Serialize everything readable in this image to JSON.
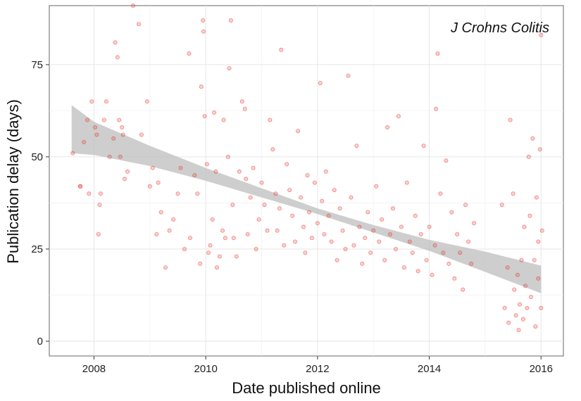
{
  "chart_data": {
    "type": "scatter",
    "title": "",
    "annotation": "J Crohns Colitis",
    "xlabel": "Date published online",
    "ylabel": "Publication delay (days)",
    "xlim": [
      2007.2,
      2016.4
    ],
    "ylim": [
      -4,
      91
    ],
    "x_ticks": [
      2008,
      2010,
      2012,
      2014,
      2016
    ],
    "x_tick_labels": [
      "2008",
      "2010",
      "2012",
      "2014",
      "2016"
    ],
    "y_ticks": [
      0,
      25,
      50,
      75
    ],
    "y_tick_labels": [
      "0",
      "25",
      "50",
      "75"
    ],
    "grid": true,
    "point_color": "#e8332a",
    "ribbon_color": "#bdbdbd",
    "trend": {
      "x": [
        2007.6,
        2008,
        2009,
        2010,
        2011,
        2012,
        2013,
        2014,
        2015,
        2016
      ],
      "lower": [
        51,
        50.5,
        47.5,
        43.5,
        39,
        34.5,
        29.5,
        24.5,
        18.8,
        13
      ],
      "upper": [
        64,
        59.5,
        53,
        47,
        41.5,
        36,
        31.5,
        27.5,
        24.3,
        20.5
      ]
    },
    "points": [
      [
        2007.62,
        51
      ],
      [
        2007.75,
        42
      ],
      [
        2007.76,
        42
      ],
      [
        2007.82,
        54
      ],
      [
        2007.88,
        60
      ],
      [
        2007.91,
        40
      ],
      [
        2007.96,
        65
      ],
      [
        2008.02,
        58
      ],
      [
        2008.05,
        56
      ],
      [
        2008.08,
        29
      ],
      [
        2008.1,
        37
      ],
      [
        2008.12,
        40
      ],
      [
        2008.18,
        60
      ],
      [
        2008.22,
        65
      ],
      [
        2008.28,
        50
      ],
      [
        2008.35,
        55
      ],
      [
        2008.38,
        81
      ],
      [
        2008.42,
        77
      ],
      [
        2008.45,
        60
      ],
      [
        2008.47,
        50
      ],
      [
        2008.5,
        58
      ],
      [
        2008.52,
        56
      ],
      [
        2008.55,
        44
      ],
      [
        2008.6,
        46
      ],
      [
        2008.7,
        91
      ],
      [
        2008.8,
        86
      ],
      [
        2008.85,
        56
      ],
      [
        2008.95,
        65
      ],
      [
        2009.0,
        42
      ],
      [
        2009.05,
        47
      ],
      [
        2009.12,
        29
      ],
      [
        2009.15,
        43
      ],
      [
        2009.2,
        35
      ],
      [
        2009.28,
        20
      ],
      [
        2009.35,
        30
      ],
      [
        2009.42,
        33
      ],
      [
        2009.5,
        40
      ],
      [
        2009.55,
        47
      ],
      [
        2009.62,
        25
      ],
      [
        2009.7,
        78
      ],
      [
        2009.72,
        28
      ],
      [
        2009.8,
        45
      ],
      [
        2009.85,
        40
      ],
      [
        2009.9,
        21
      ],
      [
        2009.92,
        69
      ],
      [
        2009.95,
        87
      ],
      [
        2009.96,
        84
      ],
      [
        2009.98,
        61
      ],
      [
        2010.02,
        48
      ],
      [
        2010.05,
        24
      ],
      [
        2010.08,
        26
      ],
      [
        2010.12,
        33
      ],
      [
        2010.15,
        62
      ],
      [
        2010.18,
        46
      ],
      [
        2010.2,
        20
      ],
      [
        2010.25,
        23
      ],
      [
        2010.3,
        30
      ],
      [
        2010.32,
        60
      ],
      [
        2010.35,
        28
      ],
      [
        2010.4,
        50
      ],
      [
        2010.42,
        74
      ],
      [
        2010.45,
        87
      ],
      [
        2010.48,
        37
      ],
      [
        2010.5,
        28
      ],
      [
        2010.55,
        23
      ],
      [
        2010.6,
        46
      ],
      [
        2010.65,
        65
      ],
      [
        2010.7,
        63
      ],
      [
        2010.72,
        44
      ],
      [
        2010.75,
        29
      ],
      [
        2010.8,
        39
      ],
      [
        2010.85,
        47
      ],
      [
        2010.9,
        25
      ],
      [
        2010.95,
        33
      ],
      [
        2011.0,
        43
      ],
      [
        2011.05,
        37
      ],
      [
        2011.1,
        30
      ],
      [
        2011.15,
        60
      ],
      [
        2011.2,
        52
      ],
      [
        2011.25,
        40
      ],
      [
        2011.28,
        30
      ],
      [
        2011.32,
        36
      ],
      [
        2011.35,
        79
      ],
      [
        2011.4,
        26
      ],
      [
        2011.45,
        48
      ],
      [
        2011.5,
        41
      ],
      [
        2011.55,
        34
      ],
      [
        2011.6,
        27
      ],
      [
        2011.65,
        57
      ],
      [
        2011.7,
        39
      ],
      [
        2011.75,
        31
      ],
      [
        2011.78,
        24
      ],
      [
        2011.82,
        45
      ],
      [
        2011.85,
        35
      ],
      [
        2011.9,
        28
      ],
      [
        2011.95,
        43
      ],
      [
        2012.0,
        32
      ],
      [
        2012.05,
        70
      ],
      [
        2012.08,
        38
      ],
      [
        2012.12,
        29
      ],
      [
        2012.15,
        46
      ],
      [
        2012.2,
        34
      ],
      [
        2012.25,
        27
      ],
      [
        2012.3,
        41
      ],
      [
        2012.35,
        22
      ],
      [
        2012.4,
        36
      ],
      [
        2012.45,
        30
      ],
      [
        2012.5,
        25
      ],
      [
        2012.55,
        72
      ],
      [
        2012.6,
        39
      ],
      [
        2012.65,
        26
      ],
      [
        2012.7,
        53
      ],
      [
        2012.75,
        31
      ],
      [
        2012.8,
        21
      ],
      [
        2012.85,
        28
      ],
      [
        2012.9,
        35
      ],
      [
        2012.95,
        24
      ],
      [
        2013.0,
        30
      ],
      [
        2013.05,
        42
      ],
      [
        2013.1,
        27
      ],
      [
        2013.15,
        33
      ],
      [
        2013.2,
        22
      ],
      [
        2013.25,
        58
      ],
      [
        2013.3,
        29
      ],
      [
        2013.35,
        36
      ],
      [
        2013.4,
        25
      ],
      [
        2013.45,
        61
      ],
      [
        2013.5,
        31
      ],
      [
        2013.55,
        20
      ],
      [
        2013.6,
        43
      ],
      [
        2013.65,
        27
      ],
      [
        2013.7,
        24
      ],
      [
        2013.75,
        34
      ],
      [
        2013.8,
        19
      ],
      [
        2013.85,
        29
      ],
      [
        2013.9,
        53
      ],
      [
        2013.95,
        22
      ],
      [
        2014.0,
        31
      ],
      [
        2014.05,
        18
      ],
      [
        2014.1,
        26
      ],
      [
        2014.12,
        63
      ],
      [
        2014.15,
        78
      ],
      [
        2014.2,
        40
      ],
      [
        2014.25,
        24
      ],
      [
        2014.3,
        49
      ],
      [
        2014.35,
        21
      ],
      [
        2014.4,
        35
      ],
      [
        2014.45,
        17
      ],
      [
        2014.5,
        29
      ],
      [
        2014.55,
        24
      ],
      [
        2014.6,
        14
      ],
      [
        2014.65,
        37
      ],
      [
        2014.7,
        27
      ],
      [
        2014.75,
        21
      ],
      [
        2014.8,
        32
      ],
      [
        2015.3,
        37
      ],
      [
        2015.35,
        9
      ],
      [
        2015.4,
        20
      ],
      [
        2015.42,
        5
      ],
      [
        2015.45,
        60
      ],
      [
        2015.5,
        40
      ],
      [
        2015.52,
        14
      ],
      [
        2015.55,
        7
      ],
      [
        2015.58,
        18
      ],
      [
        2015.6,
        3
      ],
      [
        2015.62,
        10
      ],
      [
        2015.65,
        22
      ],
      [
        2015.68,
        6
      ],
      [
        2015.7,
        31
      ],
      [
        2015.72,
        15
      ],
      [
        2015.75,
        9
      ],
      [
        2015.78,
        50
      ],
      [
        2015.8,
        34
      ],
      [
        2015.82,
        12
      ],
      [
        2015.85,
        55
      ],
      [
        2015.88,
        22
      ],
      [
        2015.9,
        4
      ],
      [
        2015.92,
        39
      ],
      [
        2015.95,
        17
      ],
      [
        2015.98,
        52
      ],
      [
        2016.0,
        83
      ],
      [
        2016.02,
        30
      ],
      [
        2016.0,
        9
      ],
      [
        2015.95,
        27
      ]
    ]
  }
}
